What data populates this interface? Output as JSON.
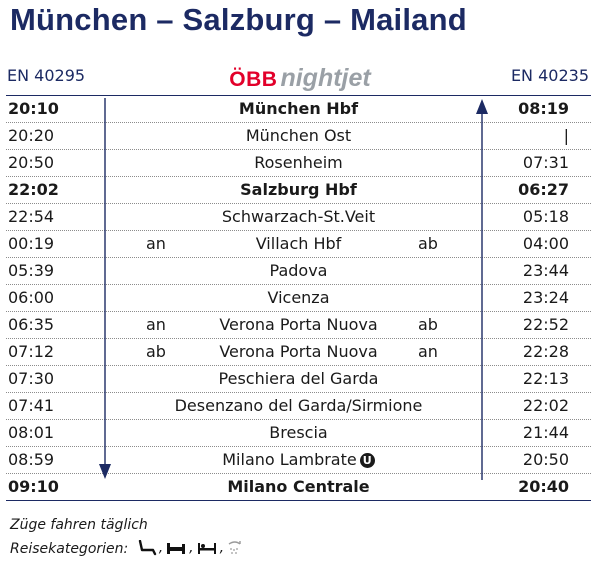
{
  "title": "München – Salzburg – Mailand",
  "train_left": "EN 40295",
  "train_right": "EN 40235",
  "brand": {
    "obb": "ÖBB",
    "nightjet": "nightjet"
  },
  "rows": [
    {
      "left": "20:10",
      "station": "München Hbf",
      "right": "08:19",
      "bold": true,
      "q_left": "",
      "q_right": ""
    },
    {
      "left": "20:20",
      "station": "München Ost",
      "right": "|",
      "bold": false,
      "q_left": "",
      "q_right": ""
    },
    {
      "left": "20:50",
      "station": "Rosenheim",
      "right": "07:31",
      "bold": false,
      "q_left": "",
      "q_right": ""
    },
    {
      "left": "22:02",
      "station": "Salzburg Hbf",
      "right": "06:27",
      "bold": true,
      "q_left": "",
      "q_right": ""
    },
    {
      "left": "22:54",
      "station": "Schwarzach-St.Veit",
      "right": "05:18",
      "bold": false,
      "q_left": "",
      "q_right": ""
    },
    {
      "left": "00:19",
      "station": "Villach Hbf",
      "right": "04:00",
      "bold": false,
      "q_left": "an",
      "q_right": "ab"
    },
    {
      "left": "05:39",
      "station": "Padova",
      "right": "23:44",
      "bold": false,
      "q_left": "",
      "q_right": ""
    },
    {
      "left": "06:00",
      "station": "Vicenza",
      "right": "23:24",
      "bold": false,
      "q_left": "",
      "q_right": ""
    },
    {
      "left": "06:35",
      "station": "Verona Porta Nuova",
      "right": "22:52",
      "bold": false,
      "q_left": "an",
      "q_right": "ab"
    },
    {
      "left": "07:12",
      "station": "Verona Porta Nuova",
      "right": "22:28",
      "bold": false,
      "q_left": "ab",
      "q_right": "an"
    },
    {
      "left": "07:30",
      "station": "Peschiera del Garda",
      "right": "22:13",
      "bold": false,
      "q_left": "",
      "q_right": ""
    },
    {
      "left": "07:41",
      "station": "Desenzano del Garda/Sirmione",
      "right": "22:02",
      "bold": false,
      "q_left": "",
      "q_right": ""
    },
    {
      "left": "08:01",
      "station": "Brescia",
      "right": "21:44",
      "bold": false,
      "q_left": "",
      "q_right": ""
    },
    {
      "left": "08:59",
      "station": "Milano Lambrate",
      "right": "20:50",
      "bold": false,
      "q_left": "",
      "q_right": "",
      "badge": "U"
    },
    {
      "left": "09:10",
      "station": "Milano Centrale",
      "right": "20:40",
      "bold": true,
      "q_left": "",
      "q_right": ""
    }
  ],
  "footer": {
    "daily": "Züge fahren täglich",
    "categories_label": "Reisekategorien:",
    "category_icons": [
      "seat-icon",
      "couchette-icon",
      "sleeper-icon",
      "shower-icon"
    ]
  },
  "colors": {
    "navy": "#1c2a63",
    "obb_red": "#e2002a",
    "nightjet_gray": "#9aa0a6"
  }
}
